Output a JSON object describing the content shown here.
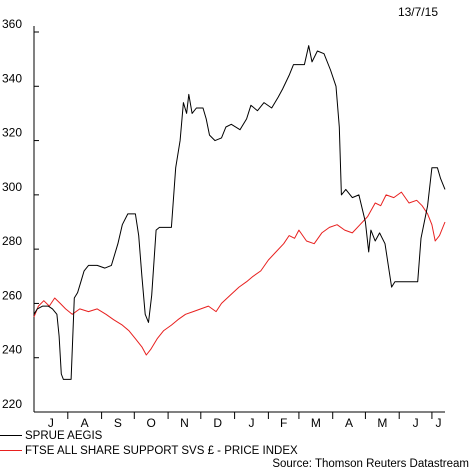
{
  "chart_data": {
    "type": "line",
    "date_label": "13/7/15",
    "y_ticks": [
      220,
      240,
      260,
      280,
      300,
      320,
      340,
      360
    ],
    "ylim": [
      220,
      360
    ],
    "x_ticks": [
      "J",
      "A",
      "S",
      "O",
      "N",
      "D",
      "J",
      "F",
      "M",
      "A",
      "M",
      "J",
      "J"
    ],
    "x_start": "2014-07-01",
    "x_end": "2015-07-13",
    "grid": false,
    "series": [
      {
        "name": "SPRUE AEGIS",
        "color": "#000000",
        "points": [
          [
            "2014-07-01",
            256
          ],
          [
            "2014-07-04",
            258
          ],
          [
            "2014-07-09",
            259
          ],
          [
            "2014-07-14",
            259
          ],
          [
            "2014-07-18",
            258
          ],
          [
            "2014-07-22",
            256
          ],
          [
            "2014-07-24",
            248
          ],
          [
            "2014-07-26",
            234
          ],
          [
            "2014-07-28",
            232
          ],
          [
            "2014-08-04",
            232
          ],
          [
            "2014-08-07",
            262
          ],
          [
            "2014-08-10",
            264
          ],
          [
            "2014-08-13",
            268
          ],
          [
            "2014-08-16",
            272
          ],
          [
            "2014-08-20",
            274
          ],
          [
            "2014-08-28",
            274
          ],
          [
            "2014-09-04",
            273
          ],
          [
            "2014-09-10",
            274
          ],
          [
            "2014-09-16",
            282
          ],
          [
            "2014-09-20",
            289
          ],
          [
            "2014-09-25",
            293
          ],
          [
            "2014-10-02",
            293
          ],
          [
            "2014-10-05",
            285
          ],
          [
            "2014-10-08",
            270
          ],
          [
            "2014-10-11",
            256
          ],
          [
            "2014-10-14",
            253
          ],
          [
            "2014-10-17",
            263
          ],
          [
            "2014-10-21",
            287
          ],
          [
            "2014-10-24",
            288
          ],
          [
            "2014-11-04",
            288
          ],
          [
            "2014-11-08",
            310
          ],
          [
            "2014-11-12",
            320
          ],
          [
            "2014-11-15",
            334
          ],
          [
            "2014-11-18",
            330
          ],
          [
            "2014-11-20",
            337
          ],
          [
            "2014-11-23",
            330
          ],
          [
            "2014-11-27",
            332
          ],
          [
            "2014-12-03",
            332
          ],
          [
            "2014-12-06",
            328
          ],
          [
            "2014-12-09",
            322
          ],
          [
            "2014-12-14",
            320
          ],
          [
            "2014-12-20",
            321
          ],
          [
            "2014-12-24",
            325
          ],
          [
            "2014-12-29",
            326
          ],
          [
            "2015-01-06",
            324
          ],
          [
            "2015-01-12",
            328
          ],
          [
            "2015-01-16",
            333
          ],
          [
            "2015-01-22",
            331
          ],
          [
            "2015-01-28",
            334
          ],
          [
            "2015-02-04",
            332
          ],
          [
            "2015-02-10",
            336
          ],
          [
            "2015-02-14",
            339
          ],
          [
            "2015-02-20",
            344
          ],
          [
            "2015-02-24",
            348
          ],
          [
            "2015-03-06",
            348
          ],
          [
            "2015-03-10",
            355
          ],
          [
            "2015-03-13",
            349
          ],
          [
            "2015-03-18",
            353
          ],
          [
            "2015-03-24",
            352
          ],
          [
            "2015-03-30",
            346
          ],
          [
            "2015-04-04",
            340
          ],
          [
            "2015-04-07",
            325
          ],
          [
            "2015-04-09",
            300
          ],
          [
            "2015-04-13",
            302
          ],
          [
            "2015-04-19",
            299
          ],
          [
            "2015-04-25",
            300
          ],
          [
            "2015-05-01",
            290
          ],
          [
            "2015-05-04",
            279
          ],
          [
            "2015-05-06",
            287
          ],
          [
            "2015-05-10",
            283
          ],
          [
            "2015-05-14",
            286
          ],
          [
            "2015-05-19",
            282
          ],
          [
            "2015-05-22",
            274
          ],
          [
            "2015-05-25",
            266
          ],
          [
            "2015-05-28",
            268
          ],
          [
            "2015-06-04",
            268
          ],
          [
            "2015-06-14",
            268
          ],
          [
            "2015-06-18",
            268
          ],
          [
            "2015-06-21",
            284
          ],
          [
            "2015-06-24",
            290
          ],
          [
            "2015-06-27",
            296
          ],
          [
            "2015-07-01",
            310
          ],
          [
            "2015-07-06",
            310
          ],
          [
            "2015-07-09",
            306
          ],
          [
            "2015-07-13",
            302
          ]
        ]
      },
      {
        "name": "FTSE ALL SHARE SUPPORT SVS £ - PRICE INDEX",
        "color": "#e8201f",
        "points": [
          [
            "2014-07-01",
            255
          ],
          [
            "2014-07-05",
            259
          ],
          [
            "2014-07-10",
            261
          ],
          [
            "2014-07-15",
            259
          ],
          [
            "2014-07-20",
            262
          ],
          [
            "2014-07-25",
            260
          ],
          [
            "2014-07-30",
            258
          ],
          [
            "2014-08-05",
            256
          ],
          [
            "2014-08-12",
            258
          ],
          [
            "2014-08-20",
            257
          ],
          [
            "2014-08-28",
            258
          ],
          [
            "2014-09-05",
            256
          ],
          [
            "2014-09-12",
            254
          ],
          [
            "2014-09-20",
            252
          ],
          [
            "2014-09-26",
            250
          ],
          [
            "2014-10-02",
            247
          ],
          [
            "2014-10-08",
            244
          ],
          [
            "2014-10-12",
            241
          ],
          [
            "2014-10-16",
            243
          ],
          [
            "2014-10-22",
            247
          ],
          [
            "2014-10-28",
            250
          ],
          [
            "2014-11-04",
            252
          ],
          [
            "2014-11-10",
            254
          ],
          [
            "2014-11-17",
            256
          ],
          [
            "2014-11-24",
            257
          ],
          [
            "2014-12-01",
            258
          ],
          [
            "2014-12-08",
            259
          ],
          [
            "2014-12-15",
            257
          ],
          [
            "2014-12-20",
            260
          ],
          [
            "2014-12-28",
            263
          ],
          [
            "2015-01-05",
            266
          ],
          [
            "2015-01-12",
            268
          ],
          [
            "2015-01-18",
            270
          ],
          [
            "2015-01-25",
            272
          ],
          [
            "2015-02-01",
            276
          ],
          [
            "2015-02-08",
            279
          ],
          [
            "2015-02-15",
            282
          ],
          [
            "2015-02-20",
            285
          ],
          [
            "2015-02-25",
            284
          ],
          [
            "2015-03-01",
            287
          ],
          [
            "2015-03-08",
            283
          ],
          [
            "2015-03-15",
            282
          ],
          [
            "2015-03-22",
            286
          ],
          [
            "2015-03-29",
            288
          ],
          [
            "2015-04-05",
            289
          ],
          [
            "2015-04-12",
            287
          ],
          [
            "2015-04-19",
            286
          ],
          [
            "2015-04-26",
            289
          ],
          [
            "2015-05-03",
            292
          ],
          [
            "2015-05-10",
            297
          ],
          [
            "2015-05-15",
            296
          ],
          [
            "2015-05-20",
            300
          ],
          [
            "2015-05-27",
            299
          ],
          [
            "2015-06-03",
            301
          ],
          [
            "2015-06-10",
            297
          ],
          [
            "2015-06-17",
            298
          ],
          [
            "2015-06-22",
            296
          ],
          [
            "2015-06-27",
            293
          ],
          [
            "2015-07-01",
            289
          ],
          [
            "2015-07-04",
            283
          ],
          [
            "2015-07-08",
            285
          ],
          [
            "2015-07-13",
            290
          ]
        ]
      }
    ],
    "source": "Source: Thomson Reuters Datastream"
  }
}
